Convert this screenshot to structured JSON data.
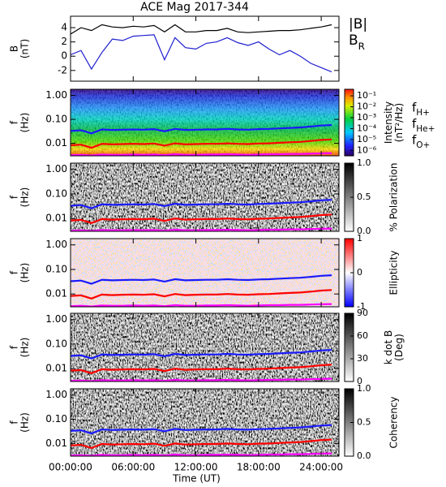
{
  "chart_data": [
    {
      "type": "line",
      "title": "ACE Mag 2017-344",
      "ylabel": [
        "B",
        "(nT)"
      ],
      "x": [
        0,
        1,
        2,
        3,
        4,
        5,
        6,
        7,
        8,
        9,
        10,
        11,
        12,
        13,
        14,
        15,
        16,
        17,
        18,
        19,
        20,
        21,
        22,
        23,
        24,
        25
      ],
      "series": [
        {
          "name": "|B|",
          "color": "#000000",
          "values": [
            3.1,
            4.0,
            3.6,
            4.4,
            4.1,
            4.0,
            4.2,
            4.1,
            4.3,
            3.4,
            4.4,
            3.4,
            3.4,
            3.6,
            3.6,
            3.9,
            3.4,
            3.3,
            3.4,
            3.5,
            3.6,
            3.6,
            3.7,
            3.9,
            4.1,
            4.4
          ]
        },
        {
          "name": "B_R",
          "color": "#1f1fd0",
          "values": [
            0.2,
            0.8,
            -1.8,
            0.5,
            2.4,
            2.2,
            2.8,
            2.9,
            3.0,
            -0.5,
            2.6,
            1.2,
            1.0,
            1.8,
            2.0,
            2.6,
            1.9,
            1.5,
            2.0,
            1.0,
            0.2,
            0.8,
            0.0,
            -1.0,
            -1.6,
            -2.2
          ]
        }
      ],
      "ylim": [
        -3.5,
        5.6
      ],
      "yticks": [
        -2,
        0,
        2,
        4
      ]
    },
    {
      "type": "spectrogram",
      "ylabel": [
        "f",
        "(Hz)"
      ],
      "logy": true,
      "ylim": [
        0.003,
        1.8
      ],
      "yticks": [
        {
          "value": 1,
          "label": "1.00"
        },
        {
          "value": 0.1,
          "label": "0.10"
        },
        0.01
      ],
      "colormap": "rainbow",
      "clog": true,
      "clim": [
        3.2e-07,
        0.4
      ],
      "colorbar_label": [
        "Intensity",
        "(nT²/Hz)"
      ],
      "cticks": [
        {
          "value": 0.1,
          "label": "10⁻¹"
        },
        {
          "value": 0.01,
          "label": "10⁻²"
        },
        {
          "value": 0.001,
          "label": "10⁻³"
        },
        {
          "value": 0.0001,
          "label": "10⁻⁴"
        },
        {
          "value": 1e-05,
          "label": "10⁻⁵"
        },
        {
          "value": 1e-06,
          "label": "10⁻⁶"
        }
      ],
      "x": [
        0,
        1,
        2,
        3,
        4,
        5,
        6,
        7,
        8,
        9,
        10,
        11,
        12,
        13,
        14,
        15,
        16,
        17,
        18,
        19,
        20,
        21,
        22,
        23,
        24,
        25
      ],
      "series": [
        {
          "name": "f_H+",
          "color": "#1a1aff",
          "values": [
            0.033,
            0.035,
            0.026,
            0.038,
            0.036,
            0.037,
            0.038,
            0.037,
            0.039,
            0.032,
            0.04,
            0.036,
            0.037,
            0.038,
            0.038,
            0.04,
            0.038,
            0.037,
            0.039,
            0.04,
            0.042,
            0.044,
            0.046,
            0.05,
            0.055,
            0.058
          ]
        },
        {
          "name": "f_He+",
          "color": "#ff0000",
          "values": [
            0.0083,
            0.0088,
            0.0065,
            0.0095,
            0.009,
            0.0093,
            0.0095,
            0.0093,
            0.0098,
            0.008,
            0.01,
            0.009,
            0.0093,
            0.0095,
            0.0095,
            0.01,
            0.0095,
            0.0093,
            0.0098,
            0.01,
            0.0105,
            0.011,
            0.0115,
            0.0125,
            0.0138,
            0.0145
          ]
        },
        {
          "name": "f_O+",
          "color": "#ff00ff",
          "values": [
            0.0032,
            0.0033,
            0.0031,
            0.0034,
            0.0033,
            0.0033,
            0.0034,
            0.0033,
            0.0034,
            0.0032,
            0.0035,
            0.0033,
            0.0033,
            0.0034,
            0.0034,
            0.0035,
            0.0034,
            0.0033,
            0.0034,
            0.0035,
            0.0035,
            0.0036,
            0.0036,
            0.0037,
            0.0038,
            0.0039
          ]
        }
      ]
    },
    {
      "type": "spectrogram",
      "ylabel": [
        "f",
        "(Hz)"
      ],
      "logy": true,
      "ylim": [
        0.003,
        1.8
      ],
      "yticks": [
        {
          "value": 1,
          "label": "1.00"
        },
        {
          "value": 0.1,
          "label": "0.10"
        },
        0.01
      ],
      "colormap": "gray_r",
      "clim": [
        0,
        1
      ],
      "colorbar_label": [
        "% Polarization"
      ],
      "cticks": [
        {
          "value": 0,
          "label": "0.0"
        },
        0.5,
        {
          "value": 1,
          "label": "1.0"
        }
      ]
    },
    {
      "type": "spectrogram",
      "ylabel": [
        "f",
        "(Hz)"
      ],
      "logy": true,
      "ylim": [
        0.003,
        1.8
      ],
      "yticks": [
        {
          "value": 1,
          "label": "1.00"
        },
        {
          "value": 0.1,
          "label": "0.10"
        },
        0.01
      ],
      "colormap": "bwr",
      "clim": [
        -1,
        1
      ],
      "colorbar_label": [
        "Ellipticity"
      ],
      "cticks": [
        -1,
        0,
        1
      ]
    },
    {
      "type": "spectrogram",
      "ylabel": [
        "f",
        "(Hz)"
      ],
      "logy": true,
      "ylim": [
        0.003,
        1.8
      ],
      "yticks": [
        {
          "value": 1,
          "label": "1.00"
        },
        {
          "value": 0.1,
          "label": "0.10"
        },
        0.01
      ],
      "colormap": "gray_r",
      "clim": [
        0,
        90
      ],
      "colorbar_label": [
        "k dot B",
        "(Deg)"
      ],
      "cticks": [
        0,
        30,
        60,
        90
      ]
    },
    {
      "type": "spectrogram",
      "ylabel": [
        "f",
        "(Hz)"
      ],
      "logy": true,
      "ylim": [
        0.003,
        1.8
      ],
      "yticks": [
        {
          "value": 1,
          "label": "1.00"
        },
        {
          "value": 0.1,
          "label": "0.10"
        },
        0.01
      ],
      "colormap": "gray_r",
      "clim": [
        0,
        1
      ],
      "colorbar_label": [
        "Coherency"
      ],
      "cticks": [
        {
          "value": 0,
          "label": "0.0"
        },
        0.5,
        {
          "value": 1,
          "label": "1.0"
        }
      ],
      "xlabel": "Time (UT)",
      "xlim": [
        0,
        25.7
      ],
      "xticks": [
        {
          "value": 0,
          "label": "00:00:00"
        },
        {
          "value": 6,
          "label": "06:00:00"
        },
        {
          "value": 12,
          "label": "12:00:00"
        },
        {
          "value": 18,
          "label": "18:00:00"
        },
        {
          "value": 24,
          "label": "24:00:00"
        }
      ]
    }
  ]
}
